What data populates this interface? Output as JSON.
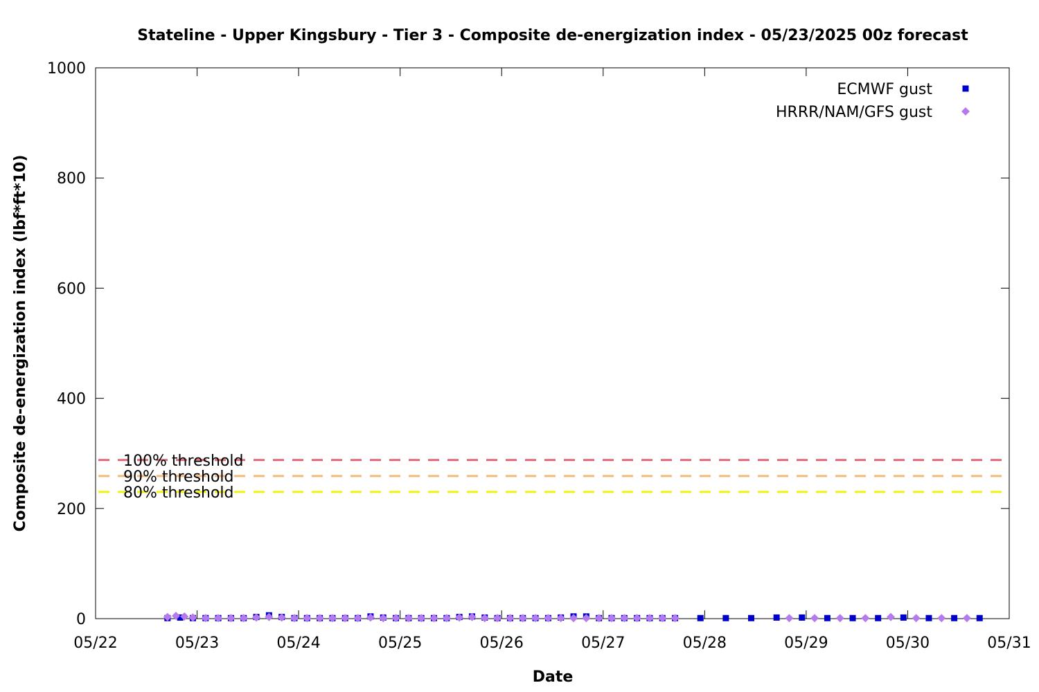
{
  "chart_data": {
    "type": "scatter",
    "title": "Stateline - Upper Kingsbury - Tier 3 - Composite de-energization index - 05/23/2025 00z forecast",
    "xlabel": "Date",
    "ylabel": "Composite de-energization index (lbf*ft*10)",
    "x_axis": {
      "min": "2025-05-22",
      "max": "2025-05-31",
      "ticks": [
        "05/22",
        "05/23",
        "05/24",
        "05/25",
        "05/26",
        "05/27",
        "05/28",
        "05/29",
        "05/30",
        "05/31"
      ]
    },
    "y_axis": {
      "min": 0,
      "max": 1000,
      "ticks": [
        0,
        200,
        400,
        600,
        800,
        1000
      ]
    },
    "legend": {
      "position": "top-right"
    },
    "grid": false,
    "thresholds": [
      {
        "label": "100% threshold",
        "value": 288,
        "color": "#dd6677"
      },
      {
        "label": "90% threshold",
        "value": 259,
        "color": "#f5b87a"
      },
      {
        "label": "80% threshold",
        "value": 230,
        "color": "#f2f20e"
      }
    ],
    "series": [
      {
        "name": "ECMWF gust",
        "marker": "square",
        "color": "#0000cc",
        "points": [
          [
            "2025-05-22T17:00",
            1
          ],
          [
            "2025-05-22T20:00",
            2
          ],
          [
            "2025-05-22T23:00",
            1
          ],
          [
            "2025-05-23T02:00",
            1
          ],
          [
            "2025-05-23T05:00",
            1
          ],
          [
            "2025-05-23T08:00",
            1
          ],
          [
            "2025-05-23T11:00",
            1
          ],
          [
            "2025-05-23T14:00",
            3
          ],
          [
            "2025-05-23T17:00",
            6
          ],
          [
            "2025-05-23T20:00",
            3
          ],
          [
            "2025-05-23T23:00",
            1
          ],
          [
            "2025-05-24T02:00",
            1
          ],
          [
            "2025-05-24T05:00",
            1
          ],
          [
            "2025-05-24T08:00",
            1
          ],
          [
            "2025-05-24T11:00",
            1
          ],
          [
            "2025-05-24T14:00",
            1
          ],
          [
            "2025-05-24T17:00",
            4
          ],
          [
            "2025-05-24T20:00",
            2
          ],
          [
            "2025-05-24T23:00",
            1
          ],
          [
            "2025-05-25T02:00",
            1
          ],
          [
            "2025-05-25T05:00",
            1
          ],
          [
            "2025-05-25T08:00",
            1
          ],
          [
            "2025-05-25T11:00",
            1
          ],
          [
            "2025-05-25T14:00",
            3
          ],
          [
            "2025-05-25T17:00",
            4
          ],
          [
            "2025-05-25T20:00",
            2
          ],
          [
            "2025-05-25T23:00",
            1
          ],
          [
            "2025-05-26T02:00",
            1
          ],
          [
            "2025-05-26T05:00",
            1
          ],
          [
            "2025-05-26T08:00",
            1
          ],
          [
            "2025-05-26T11:00",
            1
          ],
          [
            "2025-05-26T14:00",
            2
          ],
          [
            "2025-05-26T17:00",
            4
          ],
          [
            "2025-05-26T20:00",
            4
          ],
          [
            "2025-05-26T23:00",
            1
          ],
          [
            "2025-05-27T02:00",
            1
          ],
          [
            "2025-05-27T05:00",
            1
          ],
          [
            "2025-05-27T08:00",
            1
          ],
          [
            "2025-05-27T11:00",
            1
          ],
          [
            "2025-05-27T14:00",
            1
          ],
          [
            "2025-05-27T17:00",
            1
          ],
          [
            "2025-05-27T23:00",
            1
          ],
          [
            "2025-05-28T05:00",
            1
          ],
          [
            "2025-05-28T11:00",
            1
          ],
          [
            "2025-05-28T17:00",
            2
          ],
          [
            "2025-05-28T23:00",
            2
          ],
          [
            "2025-05-29T05:00",
            1
          ],
          [
            "2025-05-29T11:00",
            1
          ],
          [
            "2025-05-29T17:00",
            1
          ],
          [
            "2025-05-29T23:00",
            2
          ],
          [
            "2025-05-30T05:00",
            1
          ],
          [
            "2025-05-30T11:00",
            1
          ],
          [
            "2025-05-30T17:00",
            1
          ]
        ]
      },
      {
        "name": "HRRR/NAM/GFS gust",
        "marker": "diamond",
        "color": "#b57bee",
        "points": [
          [
            "2025-05-22T17:00",
            3
          ],
          [
            "2025-05-22T19:00",
            5
          ],
          [
            "2025-05-22T21:00",
            4
          ],
          [
            "2025-05-22T23:00",
            2
          ],
          [
            "2025-05-23T02:00",
            1
          ],
          [
            "2025-05-23T05:00",
            1
          ],
          [
            "2025-05-23T08:00",
            1
          ],
          [
            "2025-05-23T11:00",
            1
          ],
          [
            "2025-05-23T14:00",
            2
          ],
          [
            "2025-05-23T17:00",
            3
          ],
          [
            "2025-05-23T20:00",
            2
          ],
          [
            "2025-05-23T23:00",
            1
          ],
          [
            "2025-05-24T02:00",
            1
          ],
          [
            "2025-05-24T05:00",
            1
          ],
          [
            "2025-05-24T08:00",
            1
          ],
          [
            "2025-05-24T11:00",
            1
          ],
          [
            "2025-05-24T14:00",
            1
          ],
          [
            "2025-05-24T17:00",
            2
          ],
          [
            "2025-05-24T20:00",
            1
          ],
          [
            "2025-05-24T23:00",
            1
          ],
          [
            "2025-05-25T02:00",
            1
          ],
          [
            "2025-05-25T05:00",
            1
          ],
          [
            "2025-05-25T08:00",
            1
          ],
          [
            "2025-05-25T11:00",
            1
          ],
          [
            "2025-05-25T14:00",
            2
          ],
          [
            "2025-05-25T17:00",
            3
          ],
          [
            "2025-05-25T20:00",
            1
          ],
          [
            "2025-05-25T23:00",
            1
          ],
          [
            "2025-05-26T02:00",
            1
          ],
          [
            "2025-05-26T05:00",
            1
          ],
          [
            "2025-05-26T08:00",
            1
          ],
          [
            "2025-05-26T11:00",
            1
          ],
          [
            "2025-05-26T14:00",
            1
          ],
          [
            "2025-05-26T17:00",
            1
          ],
          [
            "2025-05-26T20:00",
            1
          ],
          [
            "2025-05-26T23:00",
            1
          ],
          [
            "2025-05-27T02:00",
            1
          ],
          [
            "2025-05-27T05:00",
            1
          ],
          [
            "2025-05-27T08:00",
            1
          ],
          [
            "2025-05-27T11:00",
            1
          ],
          [
            "2025-05-27T14:00",
            1
          ],
          [
            "2025-05-27T17:00",
            1
          ],
          [
            "2025-05-28T20:00",
            1
          ],
          [
            "2025-05-29T02:00",
            1
          ],
          [
            "2025-05-29T08:00",
            1
          ],
          [
            "2025-05-29T14:00",
            1
          ],
          [
            "2025-05-29T20:00",
            3
          ],
          [
            "2025-05-30T02:00",
            1
          ],
          [
            "2025-05-30T08:00",
            1
          ],
          [
            "2025-05-30T14:00",
            1
          ]
        ]
      }
    ]
  }
}
